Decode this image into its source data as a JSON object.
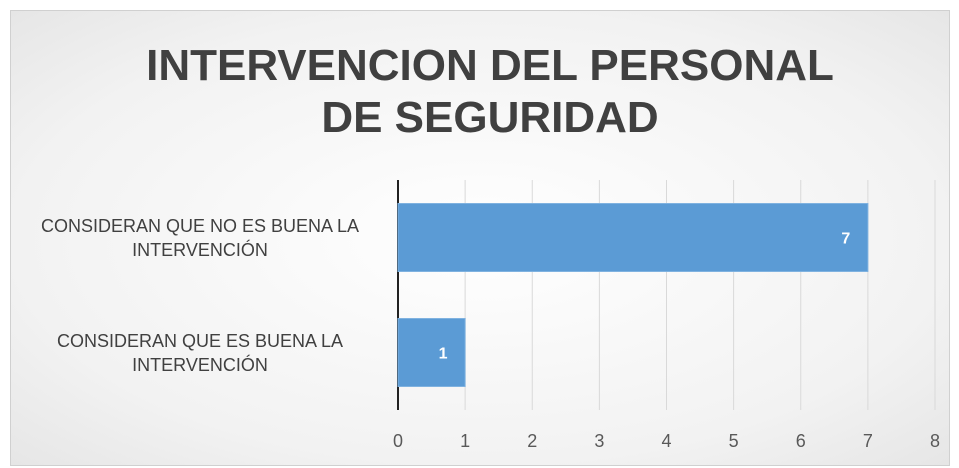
{
  "chart_data": {
    "type": "barh",
    "title": "INTERVENCION DEL PERSONAL DE SEGURIDAD",
    "categories": [
      "CONSIDERAN QUE NO ES BUENA LA INTERVENCIÓN",
      "CONSIDERAN QUE ES BUENA LA INTERVENCIÓN"
    ],
    "values": [
      7,
      1
    ],
    "color": "#5b9bd5",
    "xlim": [
      0,
      8
    ],
    "xticks": [
      0,
      1,
      2,
      3,
      4,
      5,
      6,
      7,
      8
    ],
    "grid": true
  }
}
